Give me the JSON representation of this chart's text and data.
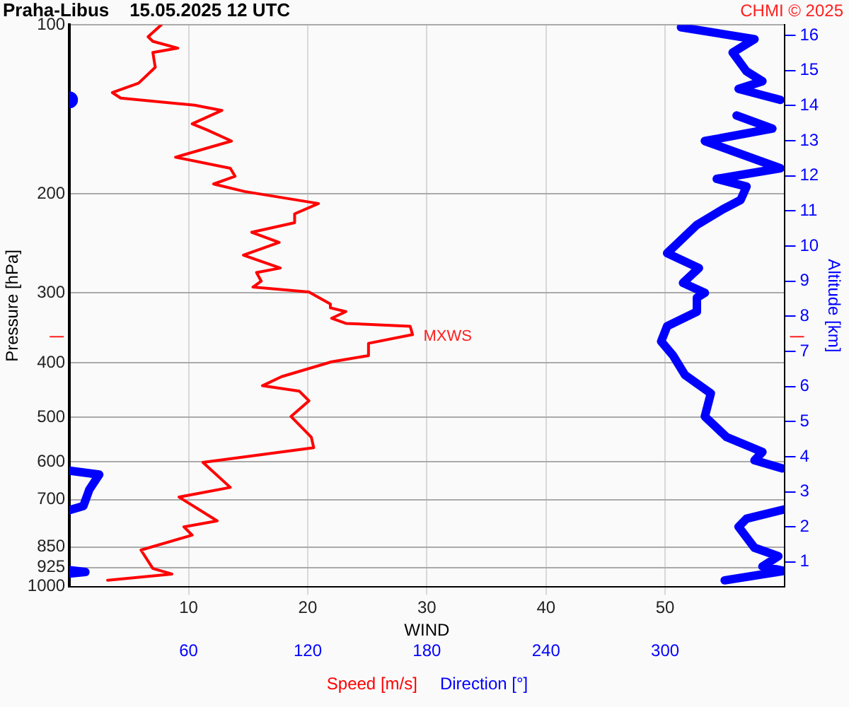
{
  "chart_data": {
    "type": "line",
    "orientation": "horizontal",
    "title": "Praha-Libus    15.05.2025 12 UTC",
    "xlabel": "WIND",
    "ylabel": "Pressure [hPa]",
    "y2label": "Altitude [km]",
    "annotations": [
      "CHMI © 2025",
      {
        "text": "MXWS",
        "x": 29,
        "y": 359
      }
    ],
    "log": "y",
    "grid": true,
    "legend": "bottom",
    "xlim": [
      0,
      60
    ],
    "xticks": [
      10,
      20,
      30,
      40,
      50
    ],
    "x2lim": [
      0,
      360
    ],
    "x2ticks": [
      60,
      120,
      180,
      240,
      300
    ],
    "ylim": [
      1000,
      100
    ],
    "yticks": [
      100,
      200,
      300,
      400,
      500,
      600,
      700,
      850,
      925,
      1000
    ],
    "y2lim": [
      0.3,
      16.3
    ],
    "y2ticks": [
      1,
      2,
      3,
      4,
      5,
      6,
      7,
      8,
      9,
      10,
      11,
      12,
      13,
      14,
      15,
      16
    ],
    "series": [
      {
        "name": "Speed [m/s]",
        "color": "#ff0000",
        "x": [
          100,
          105,
          107,
          110,
          112,
          119,
          127,
          132,
          135,
          139,
          142,
          150,
          154,
          161,
          172,
          180,
          186,
          192,
          198,
          208,
          217,
          225,
          234,
          244,
          257,
          271,
          276,
          286,
          293,
          299,
          314,
          319,
          324,
          333,
          340,
          344,
          356,
          369,
          388,
          398,
          423,
          439,
          449,
          467,
          498,
          542,
          566,
          601,
          666,
          693,
          764,
          783,
          810,
          861,
          929,
          950,
          975
        ],
        "values": [
          7.7,
          6.6,
          7.0,
          9.1,
          7.0,
          7.2,
          5.8,
          3.6,
          4.3,
          10.5,
          12.8,
          10.3,
          11.6,
          13.6,
          8.9,
          13.5,
          13.9,
          12.1,
          14.7,
          20.9,
          18.9,
          18.9,
          15.3,
          17.6,
          14.6,
          17.7,
          15.7,
          16.1,
          15.4,
          20.1,
          21.9,
          21.9,
          23.2,
          22.0,
          23.2,
          28.6,
          28.8,
          25.1,
          25.1,
          22.0,
          17.8,
          16.2,
          19.3,
          20.1,
          18.6,
          20.3,
          20.5,
          11.2,
          13.5,
          9.2,
          12.4,
          9.6,
          10.3,
          6.0,
          7.0,
          8.6,
          3.2
        ]
      },
      {
        "name": "Direction [°]",
        "color": "#0000ff",
        "axis": "x2",
        "x": [
          101,
          106,
          112,
          121,
          126,
          130,
          136,
          null,
          145,
          153,
          161,
          180,
          188,
          194,
          205,
          213,
          227,
          255,
          271,
          288,
          300,
          306,
          324,
          344,
          366,
          388,
          420,
          453,
          498,
          542,
          576,
          596,
          616,
          null,
          622,
          632,
          672,
          719,
          731,
          null,
          729,
          757,
          783,
          853,
          883,
          921,
          938,
          975,
          null,
          935,
          942,
          948
        ],
        "values": [
          308,
          345,
          334,
          341,
          349,
          337,
          358,
          null,
          336,
          354,
          320,
          358,
          326,
          341,
          338,
          329,
          316,
          301,
          317,
          309,
          320,
          316,
          316,
          301,
          298,
          304,
          310,
          323,
          320,
          331,
          349,
          345,
          359,
          null,
          0,
          15,
          10,
          7,
          0,
          null,
          360,
          341,
          337,
          345,
          357,
          349,
          360,
          330,
          null,
          0,
          8,
          0
        ]
      },
      {
        "type": "scatter",
        "color": "#0000ff",
        "axis": "x2",
        "marker": "circle",
        "x": [
          136
        ],
        "values": [
          0
        ]
      }
    ]
  }
}
